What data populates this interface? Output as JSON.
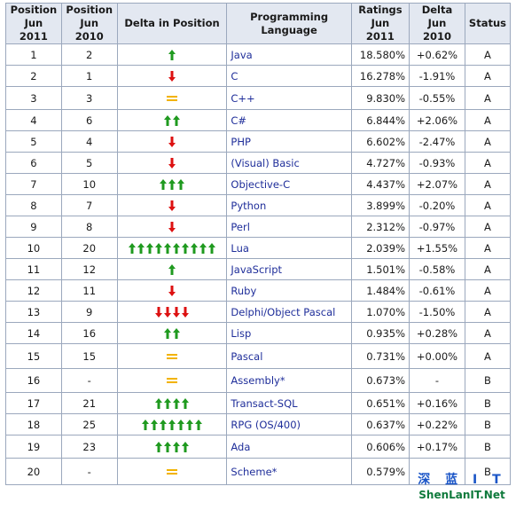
{
  "headers": {
    "pos2011": [
      "Position",
      "Jun 2011"
    ],
    "pos2010": [
      "Position",
      "Jun 2010"
    ],
    "delta_pos": "Delta in Position",
    "language": "Programming Language",
    "ratings": [
      "Ratings",
      "Jun 2011"
    ],
    "delta": [
      "Delta",
      "Jun 2010"
    ],
    "status": "Status"
  },
  "colors": {
    "up": "#1f9a1f",
    "down": "#dd1111",
    "same": "#f2b300",
    "link": "#1f2e9a"
  },
  "rows": [
    {
      "pos2011": "1",
      "pos2010": "2",
      "change": {
        "dir": "up",
        "count": 1
      },
      "language": "Java",
      "rating": "18.580%",
      "delta": "+0.62%",
      "status": "A"
    },
    {
      "pos2011": "2",
      "pos2010": "1",
      "change": {
        "dir": "down",
        "count": 1
      },
      "language": "C",
      "rating": "16.278%",
      "delta": "-1.91%",
      "status": "A"
    },
    {
      "pos2011": "3",
      "pos2010": "3",
      "change": {
        "dir": "same",
        "count": 1
      },
      "language": "C++",
      "rating": "9.830%",
      "delta": "-0.55%",
      "status": "A"
    },
    {
      "pos2011": "4",
      "pos2010": "6",
      "change": {
        "dir": "up",
        "count": 2
      },
      "language": "C#",
      "rating": "6.844%",
      "delta": "+2.06%",
      "status": "A"
    },
    {
      "pos2011": "5",
      "pos2010": "4",
      "change": {
        "dir": "down",
        "count": 1
      },
      "language": "PHP",
      "rating": "6.602%",
      "delta": "-2.47%",
      "status": "A"
    },
    {
      "pos2011": "6",
      "pos2010": "5",
      "change": {
        "dir": "down",
        "count": 1
      },
      "language": "(Visual) Basic",
      "rating": "4.727%",
      "delta": "-0.93%",
      "status": "A"
    },
    {
      "pos2011": "7",
      "pos2010": "10",
      "change": {
        "dir": "up",
        "count": 3
      },
      "language": "Objective-C",
      "rating": "4.437%",
      "delta": "+2.07%",
      "status": "A"
    },
    {
      "pos2011": "8",
      "pos2010": "7",
      "change": {
        "dir": "down",
        "count": 1
      },
      "language": "Python",
      "rating": "3.899%",
      "delta": "-0.20%",
      "status": "A"
    },
    {
      "pos2011": "9",
      "pos2010": "8",
      "change": {
        "dir": "down",
        "count": 1
      },
      "language": "Perl",
      "rating": "2.312%",
      "delta": "-0.97%",
      "status": "A"
    },
    {
      "pos2011": "10",
      "pos2010": "20",
      "change": {
        "dir": "up",
        "count": 10
      },
      "language": "Lua",
      "rating": "2.039%",
      "delta": "+1.55%",
      "status": "A"
    },
    {
      "pos2011": "11",
      "pos2010": "12",
      "change": {
        "dir": "up",
        "count": 1
      },
      "language": "JavaScript",
      "rating": "1.501%",
      "delta": "-0.58%",
      "status": "A"
    },
    {
      "pos2011": "12",
      "pos2010": "11",
      "change": {
        "dir": "down",
        "count": 1
      },
      "language": "Ruby",
      "rating": "1.484%",
      "delta": "-0.61%",
      "status": "A"
    },
    {
      "pos2011": "13",
      "pos2010": "9",
      "change": {
        "dir": "down",
        "count": 4
      },
      "language": "Delphi/Object Pascal",
      "rating": "1.070%",
      "delta": "-1.50%",
      "status": "A"
    },
    {
      "pos2011": "14",
      "pos2010": "16",
      "change": {
        "dir": "up",
        "count": 2
      },
      "language": "Lisp",
      "rating": "0.935%",
      "delta": "+0.28%",
      "status": "A"
    },
    {
      "pos2011": "15",
      "pos2010": "15",
      "change": {
        "dir": "same",
        "count": 1
      },
      "language": "Pascal",
      "rating": "0.731%",
      "delta": "+0.00%",
      "status": "A"
    },
    {
      "pos2011": "16",
      "pos2010": "-",
      "change": {
        "dir": "same",
        "count": 1
      },
      "language": "Assembly*",
      "rating": "0.673%",
      "delta": "-",
      "status": "B"
    },
    {
      "pos2011": "17",
      "pos2010": "21",
      "change": {
        "dir": "up",
        "count": 4
      },
      "language": "Transact-SQL",
      "rating": "0.651%",
      "delta": "+0.16%",
      "status": "B"
    },
    {
      "pos2011": "18",
      "pos2010": "25",
      "change": {
        "dir": "up",
        "count": 7
      },
      "language": "RPG (OS/400)",
      "rating": "0.637%",
      "delta": "+0.22%",
      "status": "B"
    },
    {
      "pos2011": "19",
      "pos2010": "23",
      "change": {
        "dir": "up",
        "count": 4
      },
      "language": "Ada",
      "rating": "0.606%",
      "delta": "+0.17%",
      "status": "B"
    },
    {
      "pos2011": "20",
      "pos2010": "-",
      "change": {
        "dir": "same",
        "count": 1
      },
      "language": "Scheme*",
      "rating": "0.579%",
      "delta": "",
      "status": "B"
    }
  ],
  "watermark": {
    "line1": "深 蓝 I T",
    "line2": "ShenLanIT.Net"
  }
}
